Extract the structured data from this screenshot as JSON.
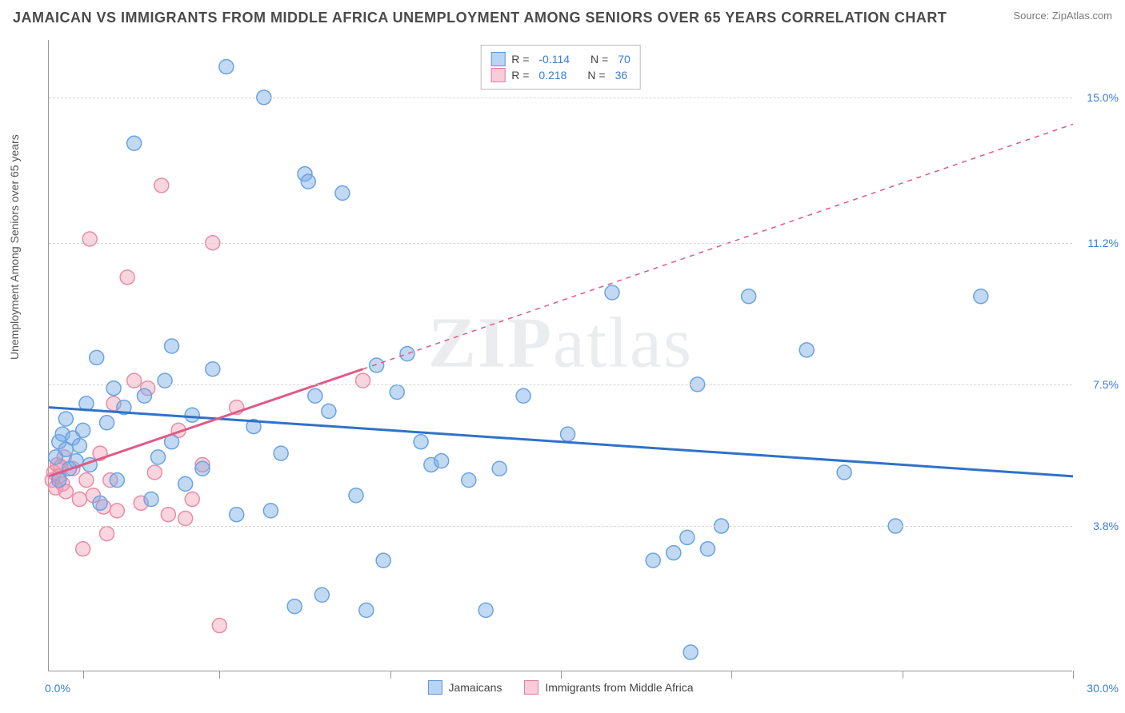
{
  "title": "JAMAICAN VS IMMIGRANTS FROM MIDDLE AFRICA UNEMPLOYMENT AMONG SENIORS OVER 65 YEARS CORRELATION CHART",
  "source": "Source: ZipAtlas.com",
  "watermark": "ZIPatlas",
  "y_axis_label": "Unemployment Among Seniors over 65 years",
  "x_range": [
    0,
    30
  ],
  "y_range": [
    0,
    16.5
  ],
  "x_axis": {
    "min_label": "0.0%",
    "max_label": "30.0%",
    "tick_positions_pct": [
      1,
      5,
      10,
      15,
      20,
      25,
      30
    ]
  },
  "y_ticks": [
    {
      "value": 3.8,
      "label": "3.8%"
    },
    {
      "value": 7.5,
      "label": "7.5%"
    },
    {
      "value": 11.2,
      "label": "11.2%"
    },
    {
      "value": 15.0,
      "label": "15.0%"
    }
  ],
  "series": [
    {
      "key": "jamaicans",
      "name": "Jamaicans",
      "color_fill": "rgba(120,170,230,0.45)",
      "color_stroke": "#6aa3e0",
      "swatch_fill": "#b9d4f3",
      "swatch_border": "#5f96d6",
      "line_color": "#2f72c9",
      "R": "-0.114",
      "N": "70",
      "regression": {
        "x1": 0,
        "y1": 6.9,
        "x2": 30,
        "y2": 5.1,
        "dashed": false
      },
      "points": [
        [
          0.2,
          5.6
        ],
        [
          0.3,
          5.0
        ],
        [
          0.3,
          6.0
        ],
        [
          0.4,
          6.2
        ],
        [
          0.5,
          5.8
        ],
        [
          0.5,
          6.6
        ],
        [
          0.6,
          5.3
        ],
        [
          0.7,
          6.1
        ],
        [
          0.8,
          5.5
        ],
        [
          0.9,
          5.9
        ],
        [
          1.0,
          6.3
        ],
        [
          1.1,
          7.0
        ],
        [
          1.2,
          5.4
        ],
        [
          1.4,
          8.2
        ],
        [
          1.5,
          4.4
        ],
        [
          1.7,
          6.5
        ],
        [
          1.9,
          7.4
        ],
        [
          2.0,
          5.0
        ],
        [
          2.2,
          6.9
        ],
        [
          2.5,
          13.8
        ],
        [
          2.8,
          7.2
        ],
        [
          3.0,
          4.5
        ],
        [
          3.2,
          5.6
        ],
        [
          3.4,
          7.6
        ],
        [
          3.6,
          6.0
        ],
        [
          3.6,
          8.5
        ],
        [
          4.0,
          4.9
        ],
        [
          4.2,
          6.7
        ],
        [
          4.5,
          5.3
        ],
        [
          4.8,
          7.9
        ],
        [
          5.2,
          15.8
        ],
        [
          5.5,
          4.1
        ],
        [
          6.0,
          6.4
        ],
        [
          6.3,
          15.0
        ],
        [
          6.5,
          4.2
        ],
        [
          6.8,
          5.7
        ],
        [
          7.2,
          1.7
        ],
        [
          7.5,
          13.0
        ],
        [
          7.6,
          12.8
        ],
        [
          7.8,
          7.2
        ],
        [
          8.0,
          2.0
        ],
        [
          8.2,
          6.8
        ],
        [
          8.6,
          12.5
        ],
        [
          9.0,
          4.6
        ],
        [
          9.3,
          1.6
        ],
        [
          9.6,
          8.0
        ],
        [
          9.8,
          2.9
        ],
        [
          10.2,
          7.3
        ],
        [
          10.5,
          8.3
        ],
        [
          10.9,
          6.0
        ],
        [
          11.2,
          5.4
        ],
        [
          11.5,
          5.5
        ],
        [
          12.3,
          5.0
        ],
        [
          12.8,
          1.6
        ],
        [
          13.2,
          5.3
        ],
        [
          13.9,
          7.2
        ],
        [
          15.2,
          6.2
        ],
        [
          16.5,
          9.9
        ],
        [
          17.7,
          2.9
        ],
        [
          18.3,
          3.1
        ],
        [
          18.7,
          3.5
        ],
        [
          18.8,
          0.5
        ],
        [
          19.0,
          7.5
        ],
        [
          19.3,
          3.2
        ],
        [
          19.7,
          3.8
        ],
        [
          20.5,
          9.8
        ],
        [
          22.2,
          8.4
        ],
        [
          23.3,
          5.2
        ],
        [
          24.8,
          3.8
        ],
        [
          27.3,
          9.8
        ]
      ]
    },
    {
      "key": "middle_africa",
      "name": "Immigrants from Middle Africa",
      "color_fill": "rgba(240,150,175,0.40)",
      "color_stroke": "#e88ca6",
      "swatch_fill": "#f7cdd9",
      "swatch_border": "#e07d9b",
      "line_color": "#e05a85",
      "R": "0.218",
      "N": "36",
      "regression": {
        "x1": 0,
        "y1": 5.1,
        "x2": 9.2,
        "y2": 7.9,
        "extrap_x2": 30,
        "extrap_y2": 14.3,
        "dashed": true
      },
      "points": [
        [
          0.1,
          5.0
        ],
        [
          0.15,
          5.2
        ],
        [
          0.2,
          4.8
        ],
        [
          0.25,
          5.4
        ],
        [
          0.3,
          5.1
        ],
        [
          0.35,
          5.35
        ],
        [
          0.4,
          4.9
        ],
        [
          0.45,
          5.6
        ],
        [
          0.5,
          4.7
        ],
        [
          0.7,
          5.3
        ],
        [
          0.9,
          4.5
        ],
        [
          1.0,
          3.2
        ],
        [
          1.1,
          5.0
        ],
        [
          1.2,
          11.3
        ],
        [
          1.3,
          4.6
        ],
        [
          1.5,
          5.7
        ],
        [
          1.6,
          4.3
        ],
        [
          1.7,
          3.6
        ],
        [
          1.8,
          5.0
        ],
        [
          1.9,
          7.0
        ],
        [
          2.0,
          4.2
        ],
        [
          2.3,
          10.3
        ],
        [
          2.5,
          7.6
        ],
        [
          2.7,
          4.4
        ],
        [
          2.9,
          7.4
        ],
        [
          3.1,
          5.2
        ],
        [
          3.3,
          12.7
        ],
        [
          3.5,
          4.1
        ],
        [
          3.8,
          6.3
        ],
        [
          4.0,
          4.0
        ],
        [
          4.2,
          4.5
        ],
        [
          4.5,
          5.4
        ],
        [
          4.8,
          11.2
        ],
        [
          5.0,
          1.2
        ],
        [
          5.5,
          6.9
        ],
        [
          9.2,
          7.6
        ]
      ]
    }
  ],
  "marker_radius": 9,
  "marker_stroke_width": 1.5,
  "regression_line_width": 3,
  "background_color": "#ffffff",
  "grid_color": "#d5d5d5",
  "legend_top": {
    "R_label": "R =",
    "N_label": "N ="
  }
}
